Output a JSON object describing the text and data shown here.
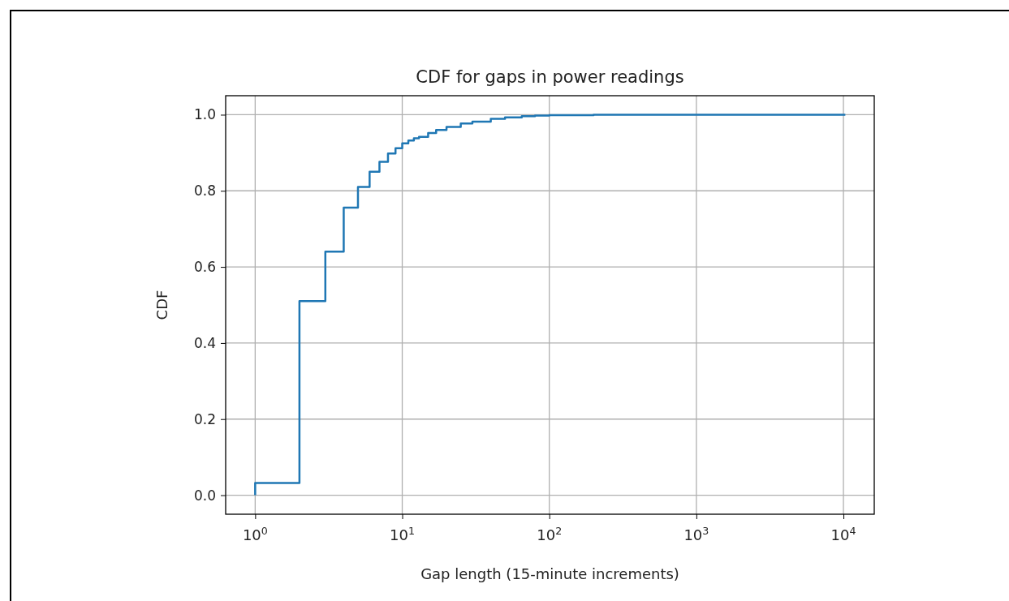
{
  "chart_data": {
    "type": "step",
    "title": "CDF for gaps in power readings",
    "xlabel": "Gap length (15-minute increments)",
    "ylabel": "CDF",
    "x": [
      1,
      1,
      2,
      3,
      4,
      5,
      6,
      7,
      8,
      9,
      10,
      11,
      12,
      13,
      15,
      17,
      20,
      25,
      30,
      40,
      50,
      65,
      80,
      100,
      200,
      10300
    ],
    "series": [
      {
        "color": "#1f77b4",
        "values": [
          0,
          0.032,
          0.51,
          0.64,
          0.756,
          0.81,
          0.85,
          0.876,
          0.898,
          0.912,
          0.925,
          0.932,
          0.938,
          0.942,
          0.952,
          0.96,
          0.968,
          0.977,
          0.982,
          0.989,
          0.993,
          0.996,
          0.998,
          0.999,
          1.0,
          1.0
        ]
      }
    ],
    "log": "x",
    "xlim": [
      0.63,
      16200
    ],
    "ylim": [
      -0.05,
      1.05
    ],
    "xticks": [
      {
        "value": 1,
        "label": "10$^{0}$"
      },
      {
        "value": 10,
        "label": "10$^{1}$"
      },
      {
        "value": 100,
        "label": "10$^{2}$"
      },
      {
        "value": 1000,
        "label": "10$^{3}$"
      },
      {
        "value": 10000,
        "label": "10$^{4}$"
      }
    ],
    "yticks": [
      {
        "value": 0,
        "label": "0.0"
      },
      {
        "value": 0.2,
        "label": "0.2"
      },
      {
        "value": 0.4,
        "label": "0.4"
      },
      {
        "value": 0.6,
        "label": "0.6"
      },
      {
        "value": 0.8,
        "label": "0.8"
      },
      {
        "value": 1,
        "label": "1.0"
      }
    ],
    "grid": true,
    "line_style": "solid",
    "marker": "none"
  }
}
